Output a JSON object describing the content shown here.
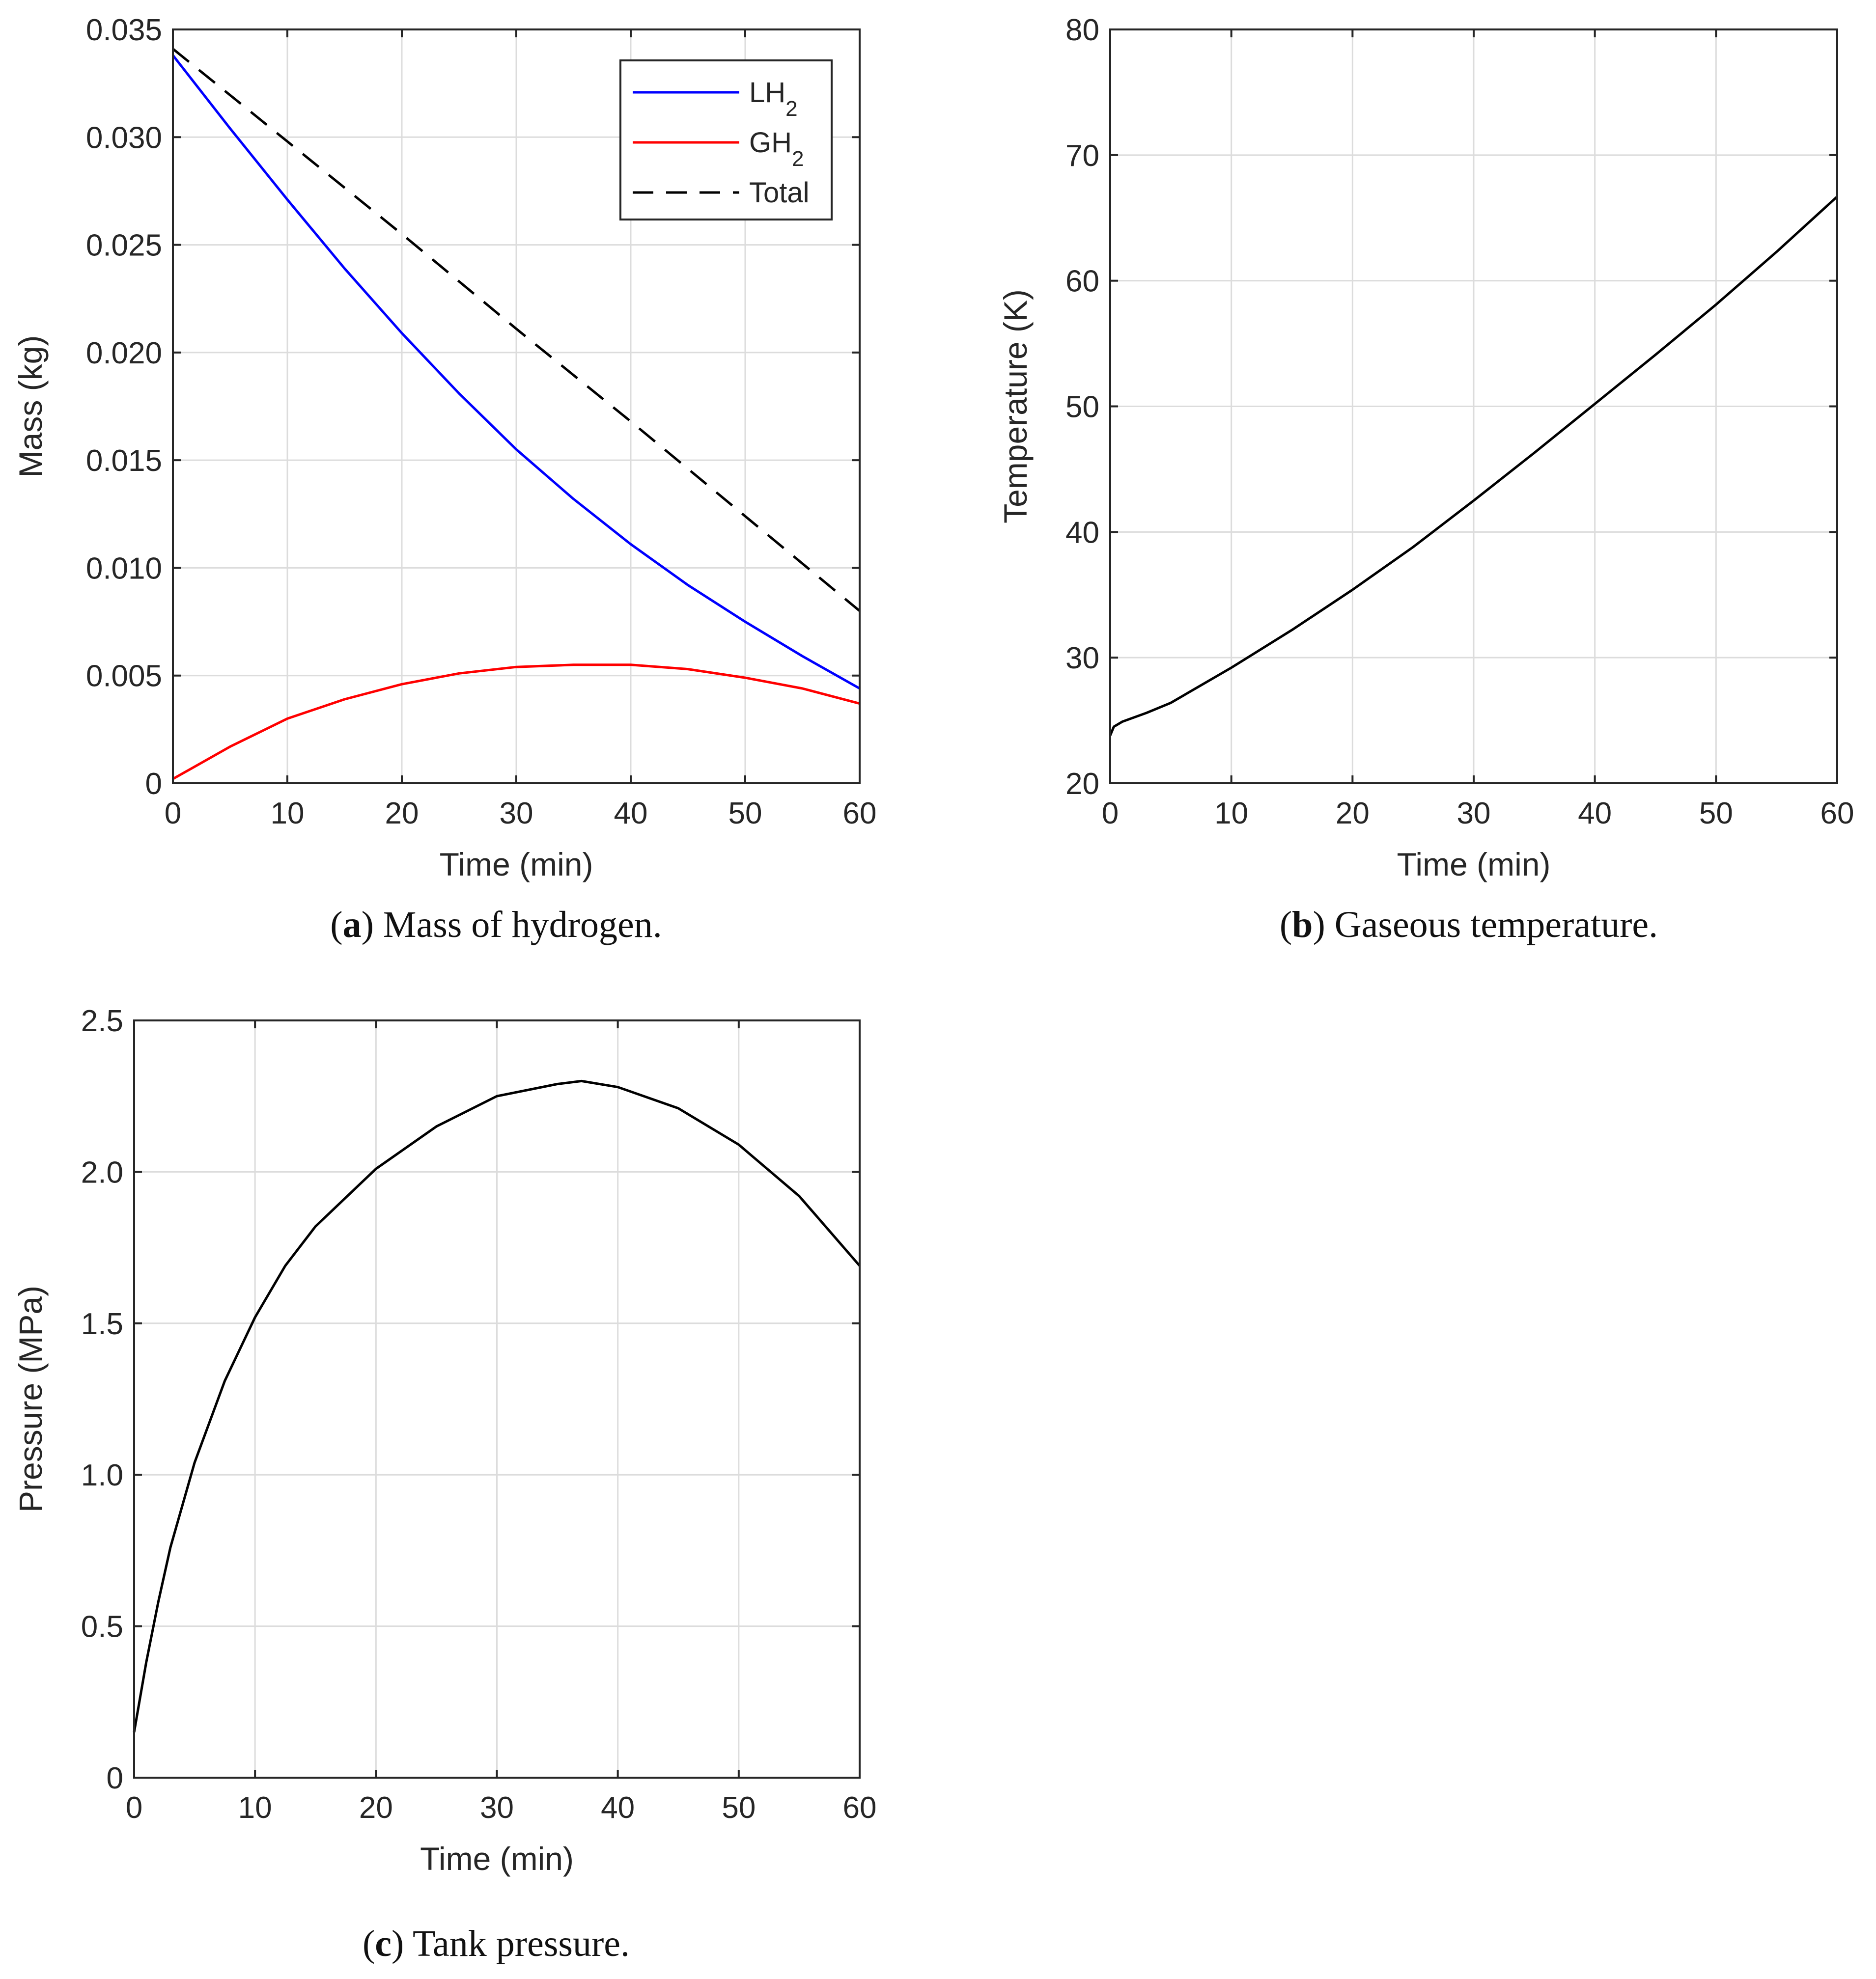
{
  "chart_data": [
    {
      "id": "a",
      "type": "line",
      "xlabel": "Time (min)",
      "ylabel": "Mass (kg)",
      "xlim": [
        0,
        60
      ],
      "ylim": [
        0,
        0.035
      ],
      "xticks": [
        "0",
        "10",
        "20",
        "30",
        "40",
        "50",
        "60"
      ],
      "yticks": [
        "0",
        "0.005",
        "0.010",
        "0.015",
        "0.020",
        "0.025",
        "0.030",
        "0.035"
      ],
      "grid": true,
      "legend": {
        "placement": "top-right",
        "entries": [
          {
            "main": "LH",
            "sub": "2"
          },
          {
            "main": "GH",
            "sub": "2"
          },
          {
            "main": "Total",
            "sub": ""
          }
        ]
      },
      "caption": {
        "letter": "a",
        "text": ") Mass of hydrogen."
      },
      "series": [
        {
          "name": "LH2",
          "color": "#0000ff",
          "style": "solid",
          "x": [
            0,
            5,
            10,
            15,
            20,
            25,
            30,
            35,
            40,
            45,
            50,
            55,
            60
          ],
          "y": [
            0.0338,
            0.0304,
            0.0271,
            0.0239,
            0.0209,
            0.0181,
            0.0155,
            0.0132,
            0.0111,
            0.0092,
            0.0075,
            0.0059,
            0.0044
          ]
        },
        {
          "name": "GH2",
          "color": "#ff0000",
          "style": "solid",
          "x": [
            0,
            5,
            10,
            15,
            20,
            25,
            30,
            35,
            40,
            45,
            50,
            55,
            60
          ],
          "y": [
            0.0002,
            0.0017,
            0.003,
            0.0039,
            0.0046,
            0.0051,
            0.0054,
            0.0055,
            0.0055,
            0.0053,
            0.0049,
            0.0044,
            0.0037
          ]
        },
        {
          "name": "Total",
          "color": "#000000",
          "style": "dashed",
          "x": [
            0,
            10,
            20,
            30,
            40,
            50,
            60
          ],
          "y": [
            0.0341,
            0.0298,
            0.0255,
            0.0211,
            0.0168,
            0.0124,
            0.008
          ]
        }
      ]
    },
    {
      "id": "b",
      "type": "line",
      "xlabel": "Time (min)",
      "ylabel": "Temperature (K)",
      "xlim": [
        0,
        60
      ],
      "ylim": [
        20,
        80
      ],
      "xticks": [
        "0",
        "10",
        "20",
        "30",
        "40",
        "50",
        "60"
      ],
      "yticks": [
        "20",
        "30",
        "40",
        "50",
        "60",
        "70",
        "80"
      ],
      "grid": true,
      "caption": {
        "letter": "b",
        "text": ") Gaseous temperature."
      },
      "series": [
        {
          "name": "Gaseous temperature",
          "color": "#000000",
          "style": "solid",
          "x": [
            0,
            0.3,
            1,
            3,
            5,
            10,
            15,
            20,
            25,
            30,
            35,
            40,
            45,
            50,
            55,
            60
          ],
          "y": [
            23.8,
            24.5,
            24.9,
            25.6,
            26.4,
            29.2,
            32.2,
            35.4,
            38.8,
            42.5,
            46.3,
            50.2,
            54.1,
            58.1,
            62.3,
            66.7
          ]
        }
      ]
    },
    {
      "id": "c",
      "type": "line",
      "xlabel": "Time (min)",
      "ylabel": "Pressure (MPa)",
      "xlim": [
        0,
        60
      ],
      "ylim": [
        0,
        2.5
      ],
      "xticks": [
        "0",
        "10",
        "20",
        "30",
        "40",
        "50",
        "60"
      ],
      "yticks": [
        "0",
        "0.5",
        "1.0",
        "1.5",
        "2.0",
        "2.5"
      ],
      "grid": true,
      "caption": {
        "letter": "c",
        "text": ") Tank pressure."
      },
      "series": [
        {
          "name": "Tank pressure",
          "color": "#000000",
          "style": "solid",
          "x": [
            0,
            1,
            2,
            3,
            5,
            7.5,
            10,
            12.5,
            15,
            20,
            25,
            30,
            35,
            37,
            40,
            45,
            50,
            55,
            60
          ],
          "y": [
            0.15,
            0.38,
            0.58,
            0.76,
            1.04,
            1.31,
            1.52,
            1.69,
            1.82,
            2.01,
            2.15,
            2.25,
            2.29,
            2.3,
            2.28,
            2.21,
            2.09,
            1.92,
            1.69
          ]
        }
      ]
    }
  ]
}
